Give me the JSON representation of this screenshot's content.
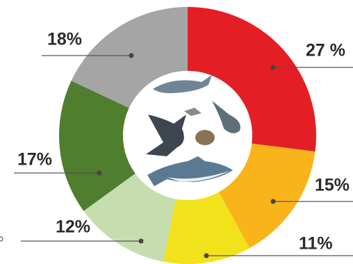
{
  "chart_data": {
    "type": "donut",
    "values": [
      27,
      15,
      11,
      12,
      17,
      18
    ],
    "value_labels": [
      "27 %",
      "15%",
      "11%",
      "12%",
      "17%",
      "18%"
    ],
    "colors": [
      "#e31e24",
      "#f9b41b",
      "#f1e21b",
      "#c6ddb0",
      "#4f7e2f",
      "#a5a5a5"
    ]
  }
}
